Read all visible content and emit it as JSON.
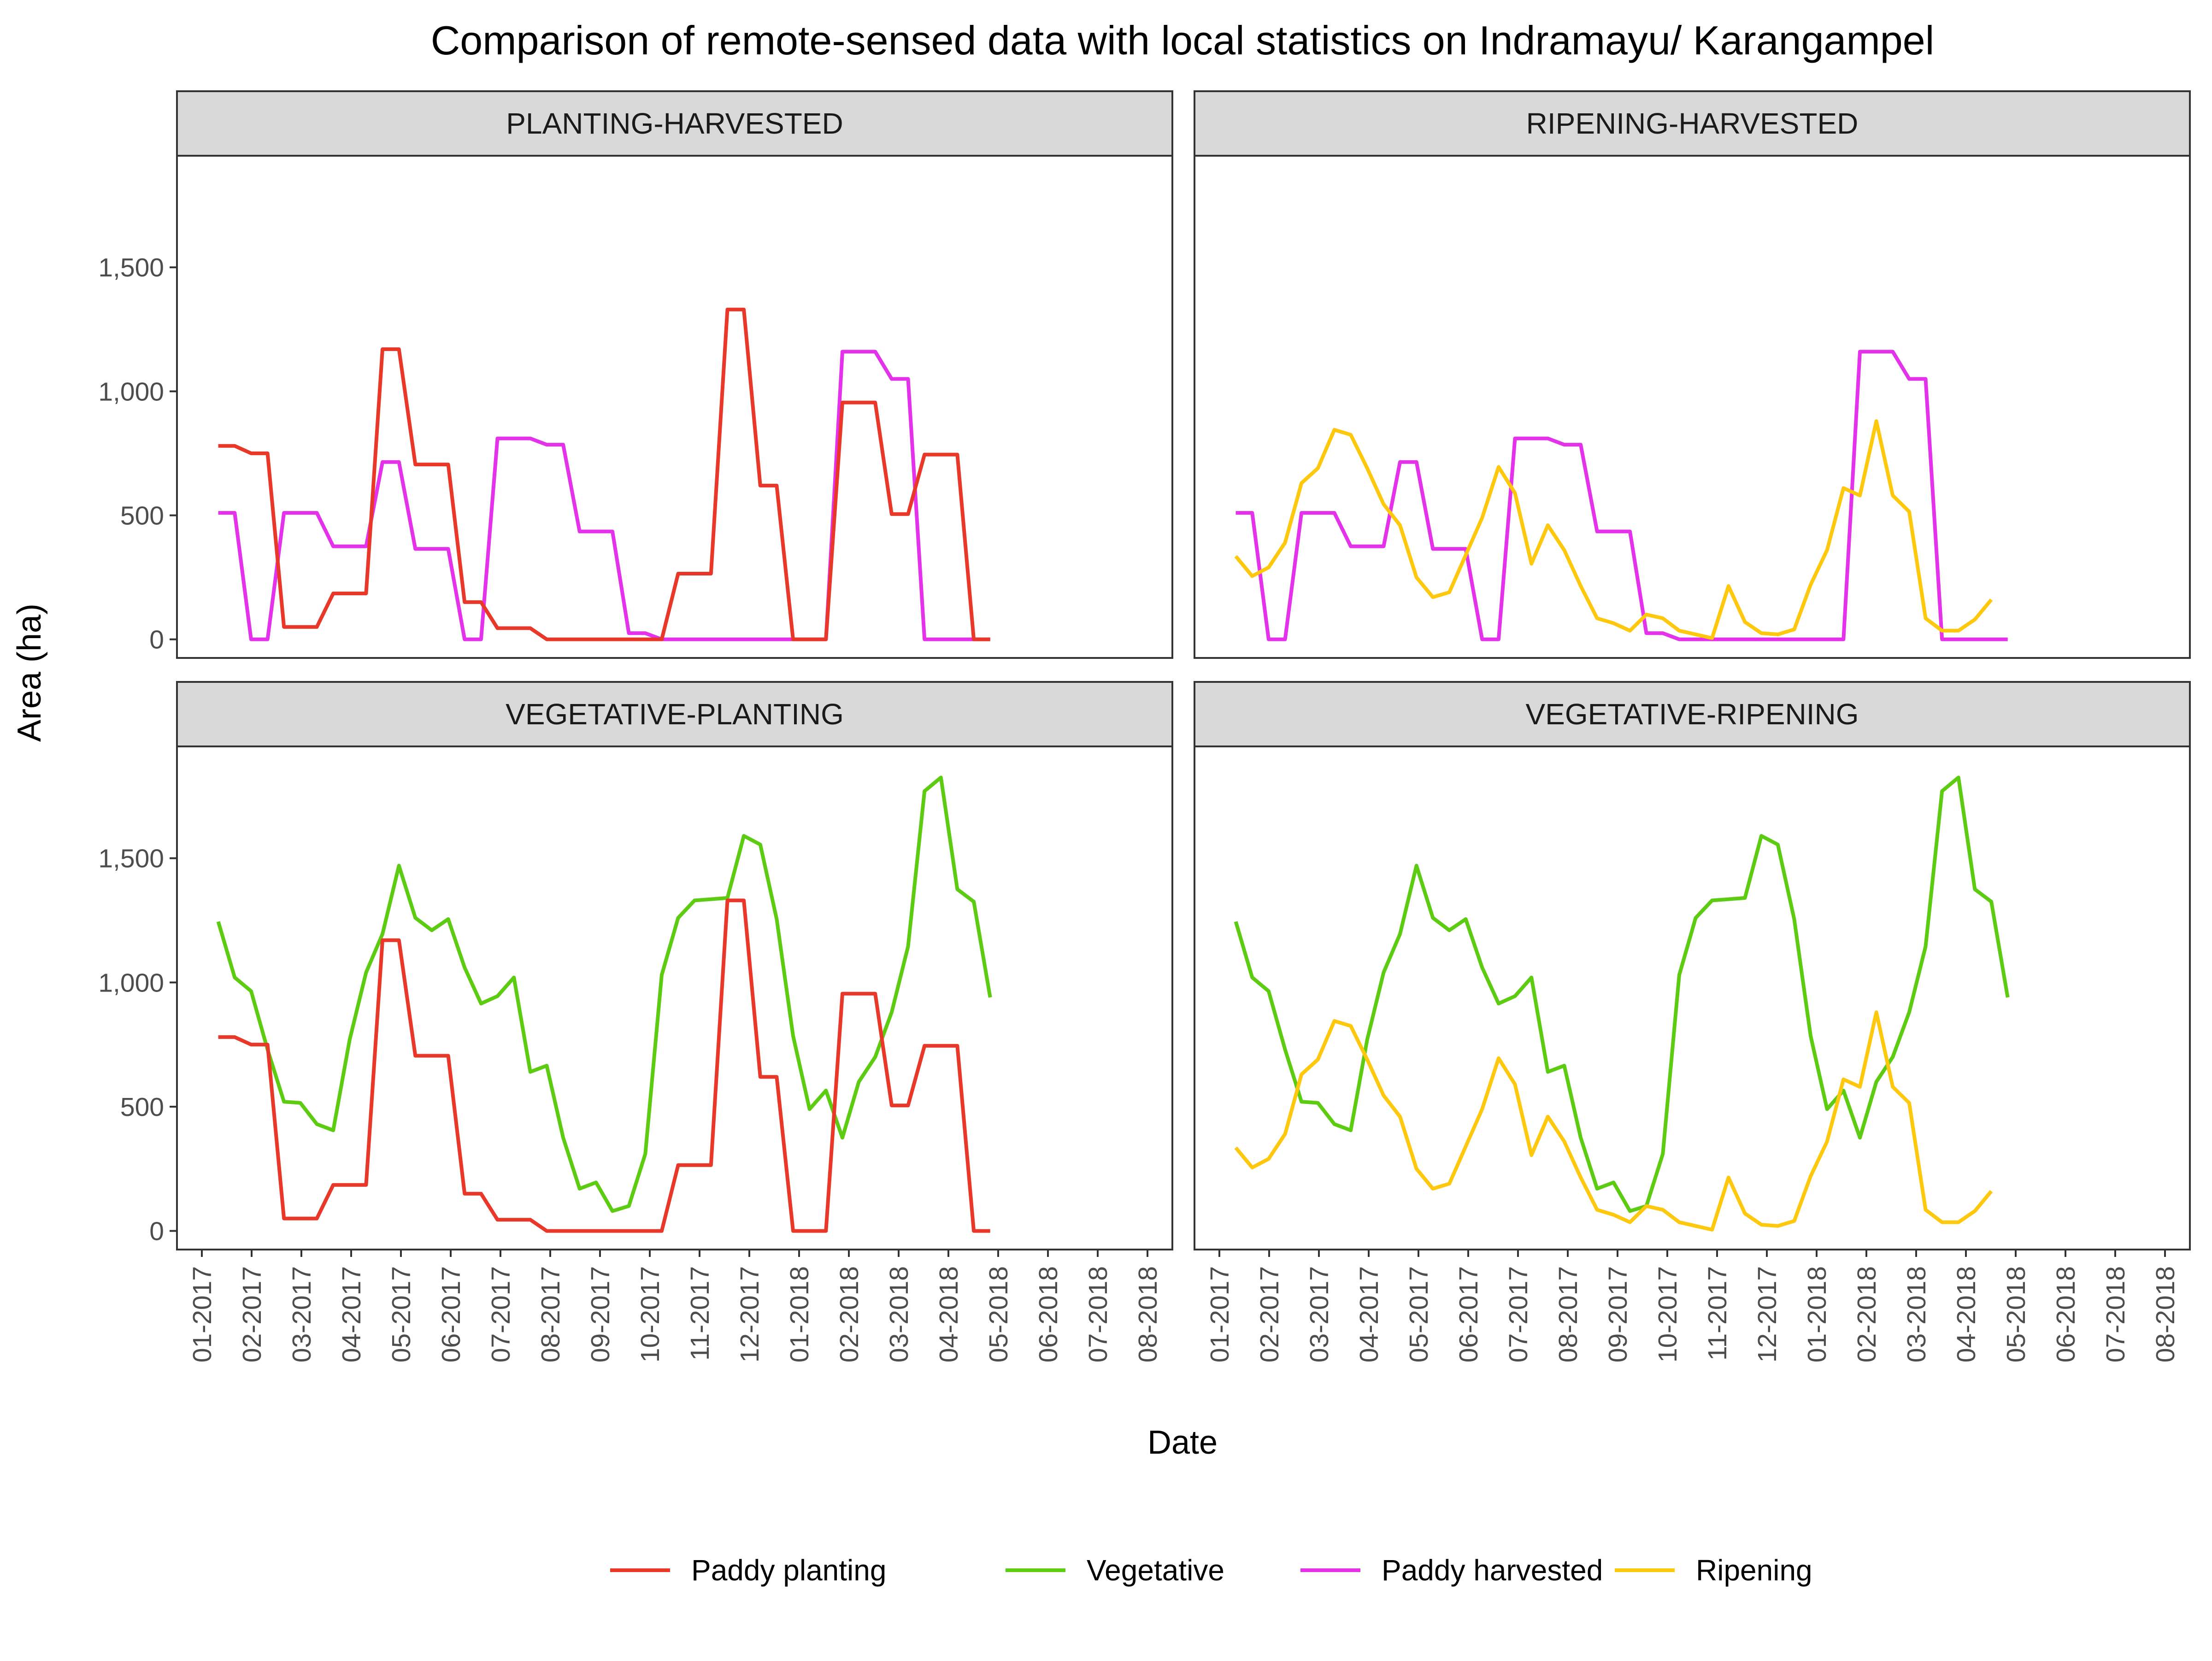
{
  "chart_data": {
    "type": "line",
    "title": "Comparison of remote-sensed data with local statistics on Indramayu/ Karangampel",
    "xlabel": "Date",
    "ylabel": "Area (ha)",
    "ylim": [
      -75,
      1950
    ],
    "y_ticks": [
      0,
      500,
      1000,
      1500
    ],
    "y_tick_labels": [
      "0",
      "500",
      "1,000",
      "1,500"
    ],
    "x_range": [
      -0.5,
      19.5
    ],
    "x_ticks": [
      0,
      1,
      2,
      3,
      4,
      5,
      6,
      7,
      8,
      9,
      10,
      11,
      12,
      13,
      14,
      15,
      16,
      17,
      18,
      19
    ],
    "x_tick_labels": [
      "01-2017",
      "02-2017",
      "03-2017",
      "04-2017",
      "05-2017",
      "06-2017",
      "07-2017",
      "08-2017",
      "09-2017",
      "10-2017",
      "11-2017",
      "12-2017",
      "01-2018",
      "02-2018",
      "03-2018",
      "04-2018",
      "05-2018",
      "06-2018",
      "07-2018",
      "08-2018"
    ],
    "grid": false,
    "legend_position": "bottom",
    "series_styles": {
      "planting": {
        "name": "Paddy planting",
        "color": "#e8382a"
      },
      "vegetative": {
        "name": "Vegetative",
        "color": "#5ccb11"
      },
      "harvested": {
        "name": "Paddy harvested",
        "color": "#e431ea"
      },
      "ripening": {
        "name": "Ripening",
        "color": "#fdc80d"
      }
    },
    "series_values": {
      "planting": [
        [
          0.33,
          780
        ],
        [
          0.66,
          780
        ],
        [
          0.99,
          750
        ],
        [
          1.32,
          750
        ],
        [
          1.65,
          50
        ],
        [
          1.98,
          50
        ],
        [
          2.31,
          50
        ],
        [
          2.64,
          185
        ],
        [
          2.97,
          185
        ],
        [
          3.3,
          185
        ],
        [
          3.63,
          1170
        ],
        [
          3.96,
          1170
        ],
        [
          4.29,
          705
        ],
        [
          4.62,
          705
        ],
        [
          4.95,
          705
        ],
        [
          5.28,
          150
        ],
        [
          5.61,
          150
        ],
        [
          5.94,
          45
        ],
        [
          6.27,
          45
        ],
        [
          6.6,
          45
        ],
        [
          6.93,
          0
        ],
        [
          7.26,
          0
        ],
        [
          7.59,
          0
        ],
        [
          7.92,
          0
        ],
        [
          8.25,
          0
        ],
        [
          8.58,
          0
        ],
        [
          8.91,
          0
        ],
        [
          9.24,
          0
        ],
        [
          9.57,
          265
        ],
        [
          9.9,
          265
        ],
        [
          10.23,
          265
        ],
        [
          10.56,
          1330
        ],
        [
          10.89,
          1330
        ],
        [
          11.22,
          620
        ],
        [
          11.55,
          620
        ],
        [
          11.88,
          0
        ],
        [
          12.21,
          0
        ],
        [
          12.54,
          0
        ],
        [
          12.87,
          955
        ],
        [
          13.2,
          955
        ],
        [
          13.53,
          955
        ],
        [
          13.86,
          505
        ],
        [
          14.19,
          505
        ],
        [
          14.52,
          745
        ],
        [
          14.85,
          745
        ],
        [
          15.18,
          745
        ],
        [
          15.51,
          0
        ],
        [
          15.84,
          0
        ]
      ],
      "vegetative": [
        [
          0.33,
          1245
        ],
        [
          0.66,
          1020
        ],
        [
          0.99,
          965
        ],
        [
          1.32,
          730
        ],
        [
          1.65,
          520
        ],
        [
          1.98,
          515
        ],
        [
          2.31,
          430
        ],
        [
          2.64,
          405
        ],
        [
          2.97,
          770
        ],
        [
          3.3,
          1040
        ],
        [
          3.63,
          1195
        ],
        [
          3.96,
          1470
        ],
        [
          4.29,
          1260
        ],
        [
          4.62,
          1210
        ],
        [
          4.95,
          1255
        ],
        [
          5.28,
          1060
        ],
        [
          5.61,
          915
        ],
        [
          5.94,
          945
        ],
        [
          6.27,
          1020
        ],
        [
          6.6,
          640
        ],
        [
          6.93,
          665
        ],
        [
          7.26,
          375
        ],
        [
          7.59,
          170
        ],
        [
          7.92,
          195
        ],
        [
          8.25,
          80
        ],
        [
          8.58,
          100
        ],
        [
          8.91,
          310
        ],
        [
          9.24,
          1030
        ],
        [
          9.57,
          1260
        ],
        [
          9.9,
          1330
        ],
        [
          10.23,
          1335
        ],
        [
          10.56,
          1340
        ],
        [
          10.89,
          1590
        ],
        [
          11.22,
          1555
        ],
        [
          11.55,
          1255
        ],
        [
          11.88,
          785
        ],
        [
          12.21,
          490
        ],
        [
          12.54,
          565
        ],
        [
          12.87,
          375
        ],
        [
          13.2,
          600
        ],
        [
          13.53,
          700
        ],
        [
          13.86,
          880
        ],
        [
          14.19,
          1145
        ],
        [
          14.52,
          1770
        ],
        [
          14.85,
          1825
        ],
        [
          15.18,
          1375
        ],
        [
          15.51,
          1325
        ],
        [
          15.84,
          940
        ]
      ],
      "harvested": [
        [
          0.33,
          510
        ],
        [
          0.66,
          510
        ],
        [
          0.99,
          0
        ],
        [
          1.32,
          0
        ],
        [
          1.65,
          510
        ],
        [
          1.98,
          510
        ],
        [
          2.31,
          510
        ],
        [
          2.64,
          375
        ],
        [
          2.97,
          375
        ],
        [
          3.3,
          375
        ],
        [
          3.63,
          715
        ],
        [
          3.96,
          715
        ],
        [
          4.29,
          365
        ],
        [
          4.62,
          365
        ],
        [
          4.95,
          365
        ],
        [
          5.28,
          0
        ],
        [
          5.61,
          0
        ],
        [
          5.94,
          810
        ],
        [
          6.27,
          810
        ],
        [
          6.6,
          810
        ],
        [
          6.93,
          785
        ],
        [
          7.26,
          785
        ],
        [
          7.59,
          435
        ],
        [
          7.92,
          435
        ],
        [
          8.25,
          435
        ],
        [
          8.58,
          25
        ],
        [
          8.91,
          25
        ],
        [
          9.24,
          0
        ],
        [
          9.57,
          0
        ],
        [
          9.9,
          0
        ],
        [
          10.23,
          0
        ],
        [
          10.56,
          0
        ],
        [
          10.89,
          0
        ],
        [
          11.22,
          0
        ],
        [
          11.55,
          0
        ],
        [
          11.88,
          0
        ],
        [
          12.21,
          0
        ],
        [
          12.54,
          0
        ],
        [
          12.87,
          1160
        ],
        [
          13.2,
          1160
        ],
        [
          13.53,
          1160
        ],
        [
          13.86,
          1050
        ],
        [
          14.19,
          1050
        ],
        [
          14.52,
          0
        ],
        [
          14.85,
          0
        ],
        [
          15.18,
          0
        ],
        [
          15.51,
          0
        ],
        [
          15.84,
          0
        ]
      ],
      "ripening": [
        [
          0.33,
          335
        ],
        [
          0.66,
          255
        ],
        [
          0.99,
          290
        ],
        [
          1.32,
          390
        ],
        [
          1.65,
          630
        ],
        [
          1.98,
          690
        ],
        [
          2.31,
          845
        ],
        [
          2.64,
          825
        ],
        [
          2.97,
          690
        ],
        [
          3.3,
          545
        ],
        [
          3.63,
          460
        ],
        [
          3.96,
          250
        ],
        [
          4.29,
          170
        ],
        [
          4.62,
          190
        ],
        [
          4.95,
          340
        ],
        [
          5.28,
          490
        ],
        [
          5.61,
          695
        ],
        [
          5.94,
          590
        ],
        [
          6.27,
          305
        ],
        [
          6.6,
          460
        ],
        [
          6.93,
          360
        ],
        [
          7.26,
          215
        ],
        [
          7.59,
          85
        ],
        [
          7.92,
          65
        ],
        [
          8.25,
          35
        ],
        [
          8.58,
          100
        ],
        [
          8.91,
          85
        ],
        [
          9.24,
          35
        ],
        [
          9.57,
          20
        ],
        [
          9.9,
          5
        ],
        [
          10.23,
          215
        ],
        [
          10.56,
          70
        ],
        [
          10.89,
          25
        ],
        [
          11.22,
          20
        ],
        [
          11.55,
          40
        ],
        [
          11.88,
          220
        ],
        [
          12.21,
          360
        ],
        [
          12.54,
          610
        ],
        [
          12.87,
          580
        ],
        [
          13.2,
          880
        ],
        [
          13.53,
          580
        ],
        [
          13.86,
          515
        ],
        [
          14.19,
          85
        ],
        [
          14.52,
          35
        ],
        [
          14.85,
          35
        ],
        [
          15.18,
          80
        ],
        [
          15.51,
          160
        ]
      ]
    },
    "panels": [
      {
        "name": "PLANTING-HARVESTED",
        "series": [
          "harvested",
          "planting"
        ]
      },
      {
        "name": "RIPENING-HARVESTED",
        "series": [
          "harvested",
          "ripening"
        ]
      },
      {
        "name": "VEGETATIVE-PLANTING",
        "series": [
          "vegetative",
          "planting"
        ]
      },
      {
        "name": "VEGETATIVE-RIPENING",
        "series": [
          "vegetative",
          "ripening"
        ]
      }
    ],
    "legend": [
      "planting",
      "vegetative",
      "harvested",
      "ripening"
    ]
  }
}
